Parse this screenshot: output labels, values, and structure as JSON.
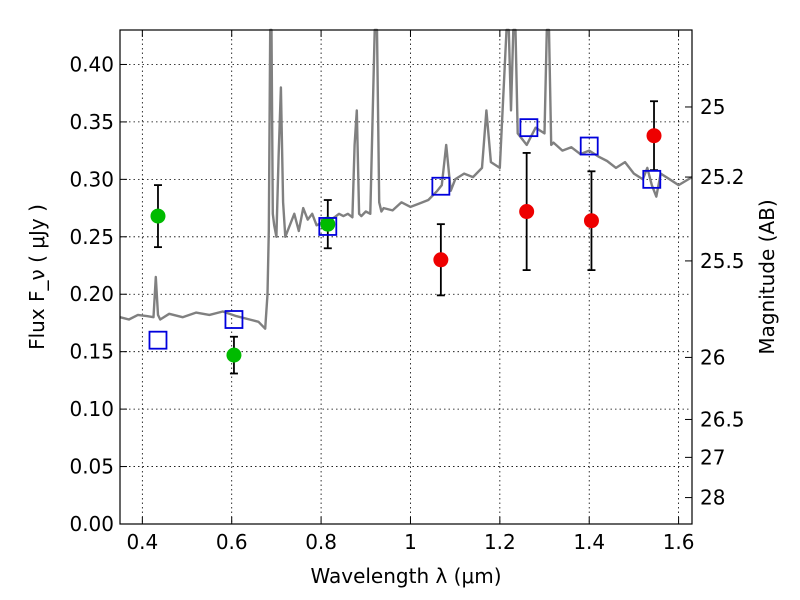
{
  "chart_data": {
    "type": "scatter",
    "xlabel": "Wavelength  λ (μm)",
    "ylabel": "Flux  F_ν ( μJy )",
    "y2label": "Magnitude (AB)",
    "xlim": [
      0.35,
      1.63
    ],
    "ylim": [
      0.0,
      0.43
    ],
    "xticks": [
      0.4,
      0.6,
      0.8,
      1.0,
      1.2,
      1.4,
      1.6
    ],
    "xtick_labels": [
      "0.4",
      "0.6",
      "0.8",
      "1",
      "1.2",
      "1.4",
      "1.6"
    ],
    "yticks": [
      0.0,
      0.05,
      0.1,
      0.15,
      0.2,
      0.25,
      0.3,
      0.35,
      0.4
    ],
    "ytick_labels": [
      "0.00",
      "0.05",
      "0.10",
      "0.15",
      "0.20",
      "0.25",
      "0.30",
      "0.35",
      "0.40"
    ],
    "y2ticks": [
      {
        "label": "25",
        "flux": 0.363
      },
      {
        "label": "25.2",
        "flux": 0.302
      },
      {
        "label": "25.5",
        "flux": 0.229
      },
      {
        "label": "26",
        "flux": 0.145
      },
      {
        "label": "26.5",
        "flux": 0.091
      },
      {
        "label": "27",
        "flux": 0.058
      },
      {
        "label": "28",
        "flux": 0.023
      }
    ],
    "grid": true,
    "colors": {
      "model": "#808080",
      "green": "#00bb00",
      "red": "#ee0000",
      "model_points": "#0000dd",
      "errorbar": "#000000"
    },
    "series": [
      {
        "name": "model_spectrum",
        "style": "line",
        "x": [
          0.35,
          0.37,
          0.39,
          0.41,
          0.425,
          0.43,
          0.435,
          0.44,
          0.46,
          0.49,
          0.52,
          0.55,
          0.58,
          0.61,
          0.64,
          0.66,
          0.675,
          0.68,
          0.683,
          0.686,
          0.689,
          0.692,
          0.695,
          0.7,
          0.705,
          0.71,
          0.715,
          0.72,
          0.73,
          0.74,
          0.75,
          0.76,
          0.77,
          0.78,
          0.79,
          0.8,
          0.81,
          0.82,
          0.83,
          0.84,
          0.85,
          0.86,
          0.87,
          0.875,
          0.88,
          0.885,
          0.89,
          0.9,
          0.91,
          0.92,
          0.925,
          0.93,
          0.935,
          0.94,
          0.96,
          0.98,
          1.0,
          1.02,
          1.04,
          1.06,
          1.07,
          1.08,
          1.09,
          1.1,
          1.12,
          1.14,
          1.16,
          1.17,
          1.18,
          1.2,
          1.215,
          1.22,
          1.225,
          1.23,
          1.235,
          1.24,
          1.25,
          1.26,
          1.28,
          1.3,
          1.305,
          1.31,
          1.315,
          1.32,
          1.34,
          1.36,
          1.38,
          1.4,
          1.42,
          1.44,
          1.46,
          1.48,
          1.5,
          1.52,
          1.53,
          1.54,
          1.55,
          1.56,
          1.58,
          1.6,
          1.63
        ],
        "y": [
          0.18,
          0.178,
          0.182,
          0.181,
          0.18,
          0.215,
          0.182,
          0.178,
          0.183,
          0.18,
          0.184,
          0.182,
          0.185,
          0.181,
          0.178,
          0.176,
          0.17,
          0.2,
          0.255,
          0.43,
          0.43,
          0.27,
          0.26,
          0.25,
          0.32,
          0.38,
          0.28,
          0.25,
          0.26,
          0.27,
          0.255,
          0.275,
          0.265,
          0.27,
          0.26,
          0.262,
          0.258,
          0.265,
          0.267,
          0.27,
          0.268,
          0.27,
          0.267,
          0.33,
          0.36,
          0.27,
          0.268,
          0.272,
          0.27,
          0.43,
          0.43,
          0.28,
          0.272,
          0.275,
          0.273,
          0.28,
          0.276,
          0.279,
          0.282,
          0.29,
          0.295,
          0.33,
          0.29,
          0.3,
          0.305,
          0.302,
          0.31,
          0.36,
          0.315,
          0.31,
          0.43,
          0.43,
          0.36,
          0.43,
          0.43,
          0.34,
          0.335,
          0.33,
          0.345,
          0.34,
          0.43,
          0.43,
          0.33,
          0.332,
          0.325,
          0.328,
          0.322,
          0.325,
          0.32,
          0.316,
          0.31,
          0.315,
          0.305,
          0.3,
          0.31,
          0.295,
          0.285,
          0.305,
          0.3,
          0.295,
          0.302
        ]
      },
      {
        "name": "observed_green",
        "style": "markers",
        "x": [
          0.435,
          0.605,
          0.815
        ],
        "y": [
          0.268,
          0.147,
          0.261
        ],
        "yerr": [
          0.027,
          0.016,
          0.021
        ]
      },
      {
        "name": "observed_red",
        "style": "markers",
        "x": [
          1.068,
          1.26,
          1.405,
          1.545
        ],
        "y": [
          0.23,
          0.272,
          0.264,
          0.338
        ],
        "yerr": [
          0.031,
          0.051,
          0.043,
          0.03
        ]
      },
      {
        "name": "model_photometry",
        "style": "markers",
        "x": [
          0.435,
          0.605,
          0.815,
          1.068,
          1.265,
          1.4,
          1.54
        ],
        "y": [
          0.16,
          0.178,
          0.259,
          0.294,
          0.345,
          0.329,
          0.3
        ]
      }
    ]
  }
}
